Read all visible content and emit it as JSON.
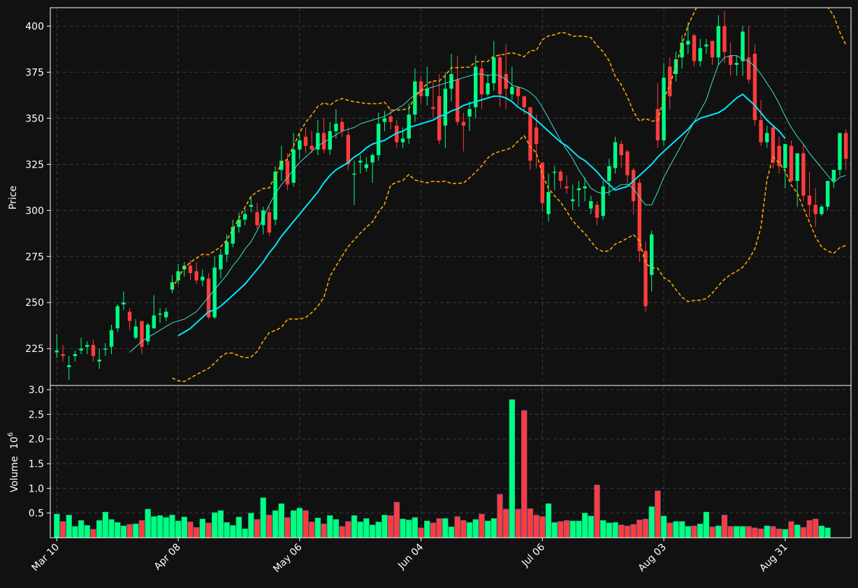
{
  "colors": {
    "background": "#111111",
    "up": "#00ff83",
    "down": "#ff3c3c",
    "ma_slow": "#00eaff",
    "ma_fast": "#40e0d0",
    "bollinger": "#ffa500",
    "grid": "#3a3a3a",
    "text": "#ffffff"
  },
  "chart_data": [
    {
      "type": "candlestick",
      "ylabel": "Price",
      "ylim": [
        205,
        410
      ],
      "y_ticks": [
        "225",
        "250",
        "275",
        "300",
        "325",
        "350",
        "375",
        "400"
      ],
      "x_tick_labels": [
        {
          "label": "Mar 10",
          "index": 0
        },
        {
          "label": "Apr 08",
          "index": 20
        },
        {
          "label": "May 06",
          "index": 40
        },
        {
          "label": "Jun 04",
          "index": 60
        },
        {
          "label": "Jul 06",
          "index": 80
        },
        {
          "label": "Aug 03",
          "index": 100
        },
        {
          "label": "Aug 31",
          "index": 120
        }
      ],
      "grid": true,
      "closes": [
        224,
        221,
        216,
        222,
        225,
        227,
        221,
        219,
        225,
        235,
        248,
        250,
        240,
        237,
        226,
        238,
        243,
        244,
        245,
        261,
        267,
        270,
        266,
        262,
        264,
        242,
        269,
        276,
        283,
        291,
        295,
        298,
        303,
        292,
        300,
        288,
        321,
        327,
        314,
        333,
        338,
        335,
        333,
        342,
        333,
        343,
        347,
        343,
        325,
        320,
        327,
        325,
        330,
        347,
        350,
        348,
        337,
        339,
        352,
        370,
        362,
        366,
        355,
        338,
        366,
        374,
        348,
        346,
        355,
        378,
        363,
        369,
        383,
        363,
        366,
        367,
        362,
        356,
        327,
        336,
        304,
        310,
        321,
        316,
        312,
        306,
        312,
        313,
        305,
        296,
        313,
        324,
        337,
        330,
        319,
        305,
        278,
        248,
        287,
        338,
        372,
        362,
        382,
        391,
        392,
        381,
        388,
        390,
        383,
        400,
        386,
        379,
        380,
        397,
        371,
        349,
        337,
        342,
        326,
        324,
        336,
        316,
        331,
        308,
        303,
        298,
        302,
        316,
        322,
        342,
        328
      ],
      "opens": [
        223,
        222,
        215,
        221,
        224,
        226,
        227,
        218,
        225,
        226,
        236,
        249,
        245,
        231,
        240,
        229,
        236,
        244,
        242,
        257,
        262,
        268,
        270,
        267,
        262,
        263,
        242,
        268,
        276,
        282,
        291,
        295,
        302,
        299,
        292,
        299,
        295,
        322,
        327,
        315,
        333,
        340,
        335,
        333,
        342,
        333,
        343,
        348,
        341,
        320,
        326,
        323,
        326,
        330,
        348,
        351,
        346,
        337,
        339,
        352,
        370,
        362,
        356,
        362,
        346,
        366,
        371,
        348,
        351,
        356,
        377,
        363,
        369,
        383,
        374,
        363,
        367,
        362,
        356,
        345,
        326,
        298,
        321,
        321,
        313,
        305,
        311,
        312,
        301,
        303,
        297,
        316,
        323,
        336,
        332,
        322,
        315,
        278,
        265,
        355,
        338,
        378,
        374,
        383,
        390,
        395,
        381,
        389,
        392,
        383,
        400,
        384,
        379,
        381,
        383,
        385,
        349,
        337,
        345,
        335,
        323,
        335,
        316,
        331,
        308,
        303,
        298,
        302,
        316,
        322,
        342
      ],
      "highs": [
        233,
        227,
        221,
        224,
        231,
        229,
        230,
        225,
        228,
        238,
        249,
        256,
        247,
        241,
        240,
        239,
        254,
        247,
        247,
        265,
        271,
        272,
        273,
        272,
        268,
        266,
        275,
        279,
        287,
        295,
        299,
        301,
        308,
        304,
        302,
        302,
        324,
        335,
        331,
        342,
        342,
        345,
        343,
        349,
        350,
        348,
        355,
        350,
        345,
        327,
        330,
        329,
        331,
        353,
        354,
        355,
        349,
        345,
        358,
        377,
        373,
        378,
        370,
        374,
        375,
        385,
        384,
        353,
        359,
        384,
        381,
        374,
        392,
        385,
        390,
        378,
        367,
        360,
        341,
        352,
        325,
        320,
        324,
        322,
        319,
        314,
        316,
        318,
        308,
        305,
        316,
        328,
        340,
        338,
        333,
        323,
        317,
        283,
        289,
        369,
        380,
        383,
        386,
        395,
        402,
        396,
        393,
        393,
        387,
        406,
        408,
        391,
        384,
        400,
        400,
        390,
        360,
        346,
        346,
        340,
        336,
        338,
        330,
        336,
        321,
        312,
        303,
        305,
        319,
        326,
        344,
        349
      ],
      "lows": [
        220,
        218,
        208,
        218,
        222,
        222,
        218,
        214,
        221,
        222,
        234,
        246,
        235,
        230,
        222,
        227,
        236,
        239,
        240,
        255,
        260,
        264,
        262,
        260,
        259,
        241,
        241,
        263,
        272,
        280,
        288,
        292,
        299,
        290,
        287,
        286,
        292,
        316,
        311,
        313,
        328,
        331,
        331,
        330,
        331,
        330,
        339,
        340,
        322,
        303,
        320,
        321,
        315,
        327,
        343,
        344,
        334,
        334,
        336,
        348,
        358,
        357,
        350,
        336,
        334,
        359,
        346,
        332,
        343,
        350,
        355,
        362,
        365,
        356,
        355,
        360,
        357,
        352,
        322,
        323,
        300,
        294,
        311,
        312,
        309,
        300,
        302,
        305,
        298,
        292,
        295,
        308,
        320,
        323,
        314,
        298,
        272,
        245,
        256,
        334,
        335,
        355,
        370,
        377,
        385,
        378,
        378,
        385,
        379,
        379,
        380,
        373,
        373,
        373,
        369,
        346,
        335,
        334,
        323,
        320,
        312,
        315,
        302,
        305,
        296,
        291,
        297,
        300,
        312,
        319,
        322,
        324
      ],
      "ma_fast": [
        null,
        null,
        null,
        null,
        null,
        null,
        null,
        null,
        null,
        null,
        null,
        null,
        223,
        226,
        229,
        231,
        233,
        235,
        237,
        239,
        240,
        241,
        243,
        245,
        249,
        253,
        257,
        261,
        265,
        270,
        274,
        279,
        283,
        289,
        296,
        303,
        309,
        314,
        318,
        322,
        326,
        329,
        332,
        335,
        337,
        339,
        341,
        343,
        344,
        345,
        347,
        348,
        349,
        350,
        351,
        353,
        355,
        357,
        360,
        363,
        365,
        366,
        367,
        368,
        369,
        370,
        371,
        372,
        373,
        374,
        374,
        373,
        374,
        373,
        371,
        368,
        367,
        366,
        364,
        361,
        356,
        350,
        344,
        338,
        333,
        328,
        322,
        317,
        312,
        310,
        309,
        310,
        312,
        314,
        314,
        312,
        307,
        303,
        303,
        310,
        318,
        324,
        330,
        336,
        342,
        348,
        354,
        360,
        370,
        379,
        383,
        384,
        384,
        382,
        381,
        378,
        374,
        369,
        364,
        358,
        351,
        345,
        340,
        336,
        331,
        327,
        323,
        319,
        315,
        318,
        319
      ],
      "ma_slow": [
        null,
        null,
        null,
        null,
        null,
        null,
        null,
        null,
        null,
        null,
        null,
        null,
        null,
        null,
        null,
        null,
        null,
        null,
        null,
        null,
        232,
        234,
        236,
        239,
        242,
        245,
        246,
        248,
        251,
        254,
        257,
        260,
        264,
        268,
        272,
        277,
        281,
        286,
        290,
        294,
        298,
        302,
        306,
        310,
        315,
        319,
        322,
        324,
        326,
        329,
        331,
        334,
        336,
        337,
        338,
        340,
        342,
        343,
        345,
        346,
        347,
        348,
        349,
        351,
        352,
        354,
        355,
        357,
        358,
        359,
        360,
        361,
        362,
        362,
        361,
        359,
        356,
        354,
        352,
        349,
        346,
        343,
        340,
        337,
        335,
        332,
        329,
        327,
        324,
        321,
        317,
        314,
        311,
        312,
        313,
        316,
        319,
        322,
        325,
        329,
        332,
        335,
        338,
        341,
        344,
        348,
        350,
        351,
        352,
        353,
        355,
        358,
        361,
        363,
        360,
        357,
        353,
        349,
        346,
        343,
        339
      ]
    },
    {
      "type": "bar",
      "ylabel": "Volume",
      "yunit_label": "10",
      "yunit_exponent": "6",
      "ylim": [
        0,
        3.0
      ],
      "y_ticks": [
        "0.5",
        "1.0",
        "1.5",
        "2.0",
        "2.5",
        "3.0"
      ],
      "grid": true,
      "volumes_millions": [
        0.48,
        0.33,
        0.46,
        0.23,
        0.35,
        0.25,
        0.17,
        0.35,
        0.52,
        0.37,
        0.31,
        0.24,
        0.27,
        0.28,
        0.35,
        0.58,
        0.43,
        0.45,
        0.41,
        0.46,
        0.34,
        0.42,
        0.32,
        0.21,
        0.38,
        0.3,
        0.51,
        0.55,
        0.31,
        0.25,
        0.42,
        0.18,
        0.5,
        0.37,
        0.81,
        0.46,
        0.55,
        0.69,
        0.41,
        0.55,
        0.6,
        0.55,
        0.32,
        0.4,
        0.28,
        0.45,
        0.37,
        0.23,
        0.33,
        0.45,
        0.32,
        0.39,
        0.26,
        0.32,
        0.46,
        0.45,
        0.72,
        0.38,
        0.36,
        0.41,
        0.2,
        0.34,
        0.3,
        0.39,
        0.39,
        0.22,
        0.43,
        0.35,
        0.31,
        0.37,
        0.48,
        0.34,
        0.39,
        0.88,
        0.58,
        2.8,
        0.58,
        2.58,
        0.59,
        0.46,
        0.43,
        0.69,
        0.31,
        0.33,
        0.35,
        0.34,
        0.34,
        0.5,
        0.44,
        1.07,
        0.35,
        0.3,
        0.31,
        0.26,
        0.24,
        0.27,
        0.36,
        0.38,
        0.63,
        0.95,
        0.44,
        0.3,
        0.33,
        0.33,
        0.23,
        0.24,
        0.28,
        0.52,
        0.22,
        0.24,
        0.46,
        0.23,
        0.23,
        0.23,
        0.23,
        0.2,
        0.18,
        0.24,
        0.23,
        0.18,
        0.17,
        0.33,
        0.26,
        0.21,
        0.35,
        0.38,
        0.24,
        0.2
      ]
    }
  ]
}
